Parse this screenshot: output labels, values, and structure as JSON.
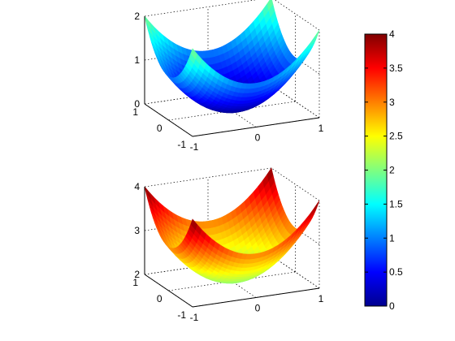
{
  "chart_data": [
    {
      "type": "surface",
      "function": "z = x^2 + y^2",
      "x": {
        "range": [
          -1,
          1
        ],
        "ticks": [
          "-1",
          "0",
          "1"
        ]
      },
      "y": {
        "range": [
          -1,
          1
        ],
        "ticks": [
          "-1",
          "0",
          "1"
        ]
      },
      "z": {
        "range": [
          0,
          2
        ],
        "ticks": [
          "0",
          "1",
          "2"
        ]
      },
      "color_range": [
        0,
        4
      ],
      "grid": true
    },
    {
      "type": "surface",
      "function": "z = x^2 + y^2 + 2",
      "x": {
        "range": [
          -1,
          1
        ],
        "ticks": [
          "-1",
          "0",
          "1"
        ]
      },
      "y": {
        "range": [
          -1,
          1
        ],
        "ticks": [
          "-1",
          "0",
          "1"
        ]
      },
      "z": {
        "range": [
          2,
          4
        ],
        "ticks": [
          "2",
          "3",
          "4"
        ]
      },
      "color_range": [
        0,
        4
      ],
      "grid": true
    }
  ],
  "colorbar": {
    "colormap": "jet",
    "range": [
      0,
      4
    ],
    "ticks": [
      "0",
      "0.5",
      "1",
      "1.5",
      "2",
      "2.5",
      "3",
      "3.5",
      "4"
    ],
    "tick_values": [
      0,
      0.5,
      1,
      1.5,
      2,
      2.5,
      3,
      3.5,
      4
    ]
  }
}
